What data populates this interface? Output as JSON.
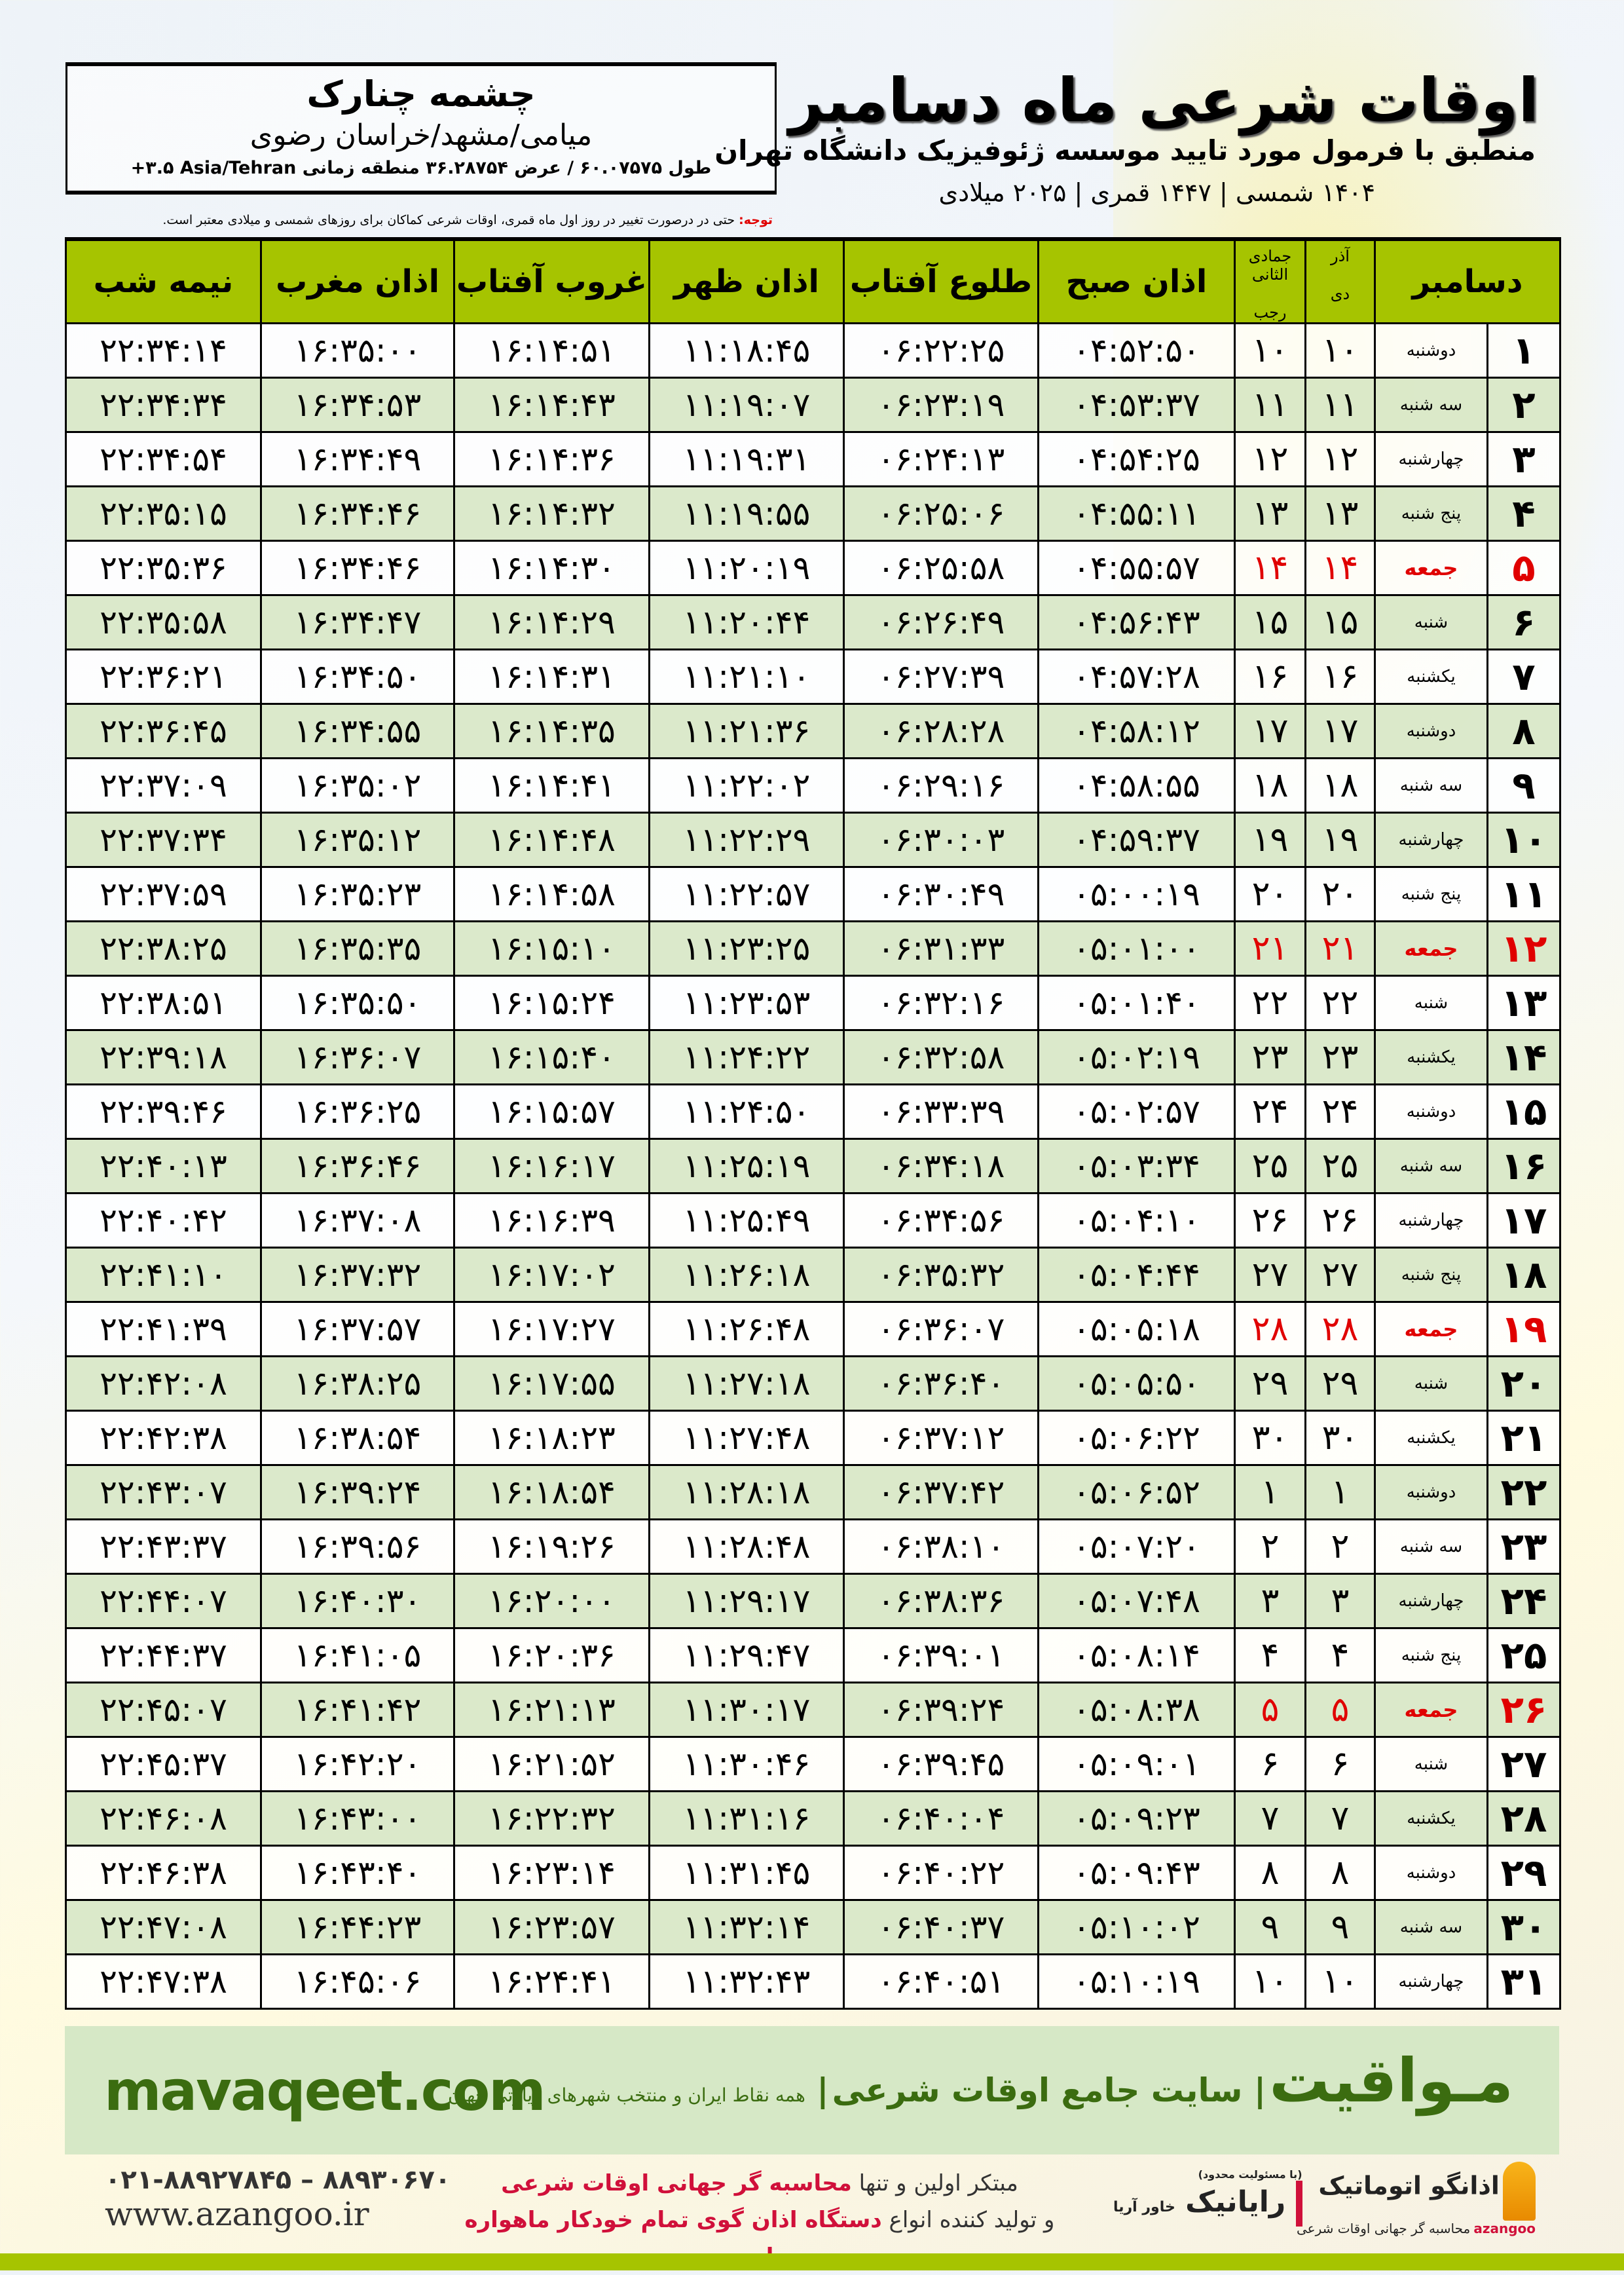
{
  "header": {
    "title": "اوقات شرعی ماه دسامبر",
    "subtitle": "منطبق با فرمول مورد تایید موسسه ژئوفیزیک دانشگاه تهران",
    "years": "۱۴۰۴ شمسی | ۱۴۴۷ قمری | ۲۰۲۵ میلادی"
  },
  "location": {
    "name": "چشمه چنارک",
    "path": "میامی/مشهد/خراسان رضوی",
    "coords": "طول ۶۰.۰۷۵۷۵ / عرض ۳۶.۲۸۷۵۴ منطقه زمانی ‎+۳.۵ Asia/Tehran"
  },
  "note": {
    "label": "توجه:",
    "text": " حتی در درصورت تغییر در روز اول ماه قمری، اوقات شرعی کماکان برای روزهای شمسی و میلادی معتبر است."
  },
  "colors": {
    "header_green": "#a6c400",
    "row_green": "#d9e8c8",
    "friday_red": "#e00000",
    "brand_green": "#3b6c10"
  },
  "table": {
    "columns": {
      "month": "دسامبر",
      "shamsi_top": "آذر",
      "shamsi_bottom": "دی",
      "hijri_top": "جمادی الثانی",
      "hijri_bottom": "رجب",
      "fajr": "اذان صبح",
      "sunrise": "طلوع آفتاب",
      "dhuhr": "اذان ظهر",
      "sunset": "غروب آفتاب",
      "maghrib": "اذان مغرب",
      "midnight": "نیمه شب"
    },
    "rows": [
      [
        "۱",
        "دوشنبه",
        "۱۰",
        "۱۰",
        "۰۴:۵۲:۵۰",
        "۰۶:۲۲:۲۵",
        "۱۱:۱۸:۴۵",
        "۱۶:۱۴:۵۱",
        "۱۶:۳۵:۰۰",
        "۲۲:۳۴:۱۴"
      ],
      [
        "۲",
        "سه شنبه",
        "۱۱",
        "۱۱",
        "۰۴:۵۳:۳۷",
        "۰۶:۲۳:۱۹",
        "۱۱:۱۹:۰۷",
        "۱۶:۱۴:۴۳",
        "۱۶:۳۴:۵۳",
        "۲۲:۳۴:۳۴"
      ],
      [
        "۳",
        "چهارشنبه",
        "۱۲",
        "۱۲",
        "۰۴:۵۴:۲۵",
        "۰۶:۲۴:۱۳",
        "۱۱:۱۹:۳۱",
        "۱۶:۱۴:۳۶",
        "۱۶:۳۴:۴۹",
        "۲۲:۳۴:۵۴"
      ],
      [
        "۴",
        "پنج شنبه",
        "۱۳",
        "۱۳",
        "۰۴:۵۵:۱۱",
        "۰۶:۲۵:۰۶",
        "۱۱:۱۹:۵۵",
        "۱۶:۱۴:۳۲",
        "۱۶:۳۴:۴۶",
        "۲۲:۳۵:۱۵"
      ],
      [
        "۵",
        "جمعه",
        "۱۴",
        "۱۴",
        "۰۴:۵۵:۵۷",
        "۰۶:۲۵:۵۸",
        "۱۱:۲۰:۱۹",
        "۱۶:۱۴:۳۰",
        "۱۶:۳۴:۴۶",
        "۲۲:۳۵:۳۶"
      ],
      [
        "۶",
        "شنبه",
        "۱۵",
        "۱۵",
        "۰۴:۵۶:۴۳",
        "۰۶:۲۶:۴۹",
        "۱۱:۲۰:۴۴",
        "۱۶:۱۴:۲۹",
        "۱۶:۳۴:۴۷",
        "۲۲:۳۵:۵۸"
      ],
      [
        "۷",
        "یکشنبه",
        "۱۶",
        "۱۶",
        "۰۴:۵۷:۲۸",
        "۰۶:۲۷:۳۹",
        "۱۱:۲۱:۱۰",
        "۱۶:۱۴:۳۱",
        "۱۶:۳۴:۵۰",
        "۲۲:۳۶:۲۱"
      ],
      [
        "۸",
        "دوشنبه",
        "۱۷",
        "۱۷",
        "۰۴:۵۸:۱۲",
        "۰۶:۲۸:۲۸",
        "۱۱:۲۱:۳۶",
        "۱۶:۱۴:۳۵",
        "۱۶:۳۴:۵۵",
        "۲۲:۳۶:۴۵"
      ],
      [
        "۹",
        "سه شنبه",
        "۱۸",
        "۱۸",
        "۰۴:۵۸:۵۵",
        "۰۶:۲۹:۱۶",
        "۱۱:۲۲:۰۲",
        "۱۶:۱۴:۴۱",
        "۱۶:۳۵:۰۲",
        "۲۲:۳۷:۰۹"
      ],
      [
        "۱۰",
        "چهارشنبه",
        "۱۹",
        "۱۹",
        "۰۴:۵۹:۳۷",
        "۰۶:۳۰:۰۳",
        "۱۱:۲۲:۲۹",
        "۱۶:۱۴:۴۸",
        "۱۶:۳۵:۱۲",
        "۲۲:۳۷:۳۴"
      ],
      [
        "۱۱",
        "پنج شنبه",
        "۲۰",
        "۲۰",
        "۰۵:۰۰:۱۹",
        "۰۶:۳۰:۴۹",
        "۱۱:۲۲:۵۷",
        "۱۶:۱۴:۵۸",
        "۱۶:۳۵:۲۳",
        "۲۲:۳۷:۵۹"
      ],
      [
        "۱۲",
        "جمعه",
        "۲۱",
        "۲۱",
        "۰۵:۰۱:۰۰",
        "۰۶:۳۱:۳۳",
        "۱۱:۲۳:۲۵",
        "۱۶:۱۵:۱۰",
        "۱۶:۳۵:۳۵",
        "۲۲:۳۸:۲۵"
      ],
      [
        "۱۳",
        "شنبه",
        "۲۲",
        "۲۲",
        "۰۵:۰۱:۴۰",
        "۰۶:۳۲:۱۶",
        "۱۱:۲۳:۵۳",
        "۱۶:۱۵:۲۴",
        "۱۶:۳۵:۵۰",
        "۲۲:۳۸:۵۱"
      ],
      [
        "۱۴",
        "یکشنبه",
        "۲۳",
        "۲۳",
        "۰۵:۰۲:۱۹",
        "۰۶:۳۲:۵۸",
        "۱۱:۲۴:۲۲",
        "۱۶:۱۵:۴۰",
        "۱۶:۳۶:۰۷",
        "۲۲:۳۹:۱۸"
      ],
      [
        "۱۵",
        "دوشنبه",
        "۲۴",
        "۲۴",
        "۰۵:۰۲:۵۷",
        "۰۶:۳۳:۳۹",
        "۱۱:۲۴:۵۰",
        "۱۶:۱۵:۵۷",
        "۱۶:۳۶:۲۵",
        "۲۲:۳۹:۴۶"
      ],
      [
        "۱۶",
        "سه شنبه",
        "۲۵",
        "۲۵",
        "۰۵:۰۳:۳۴",
        "۰۶:۳۴:۱۸",
        "۱۱:۲۵:۱۹",
        "۱۶:۱۶:۱۷",
        "۱۶:۳۶:۴۶",
        "۲۲:۴۰:۱۳"
      ],
      [
        "۱۷",
        "چهارشنبه",
        "۲۶",
        "۲۶",
        "۰۵:۰۴:۱۰",
        "۰۶:۳۴:۵۶",
        "۱۱:۲۵:۴۹",
        "۱۶:۱۶:۳۹",
        "۱۶:۳۷:۰۸",
        "۲۲:۴۰:۴۲"
      ],
      [
        "۱۸",
        "پنج شنبه",
        "۲۷",
        "۲۷",
        "۰۵:۰۴:۴۴",
        "۰۶:۳۵:۳۲",
        "۱۱:۲۶:۱۸",
        "۱۶:۱۷:۰۲",
        "۱۶:۳۷:۳۲",
        "۲۲:۴۱:۱۰"
      ],
      [
        "۱۹",
        "جمعه",
        "۲۸",
        "۲۸",
        "۰۵:۰۵:۱۸",
        "۰۶:۳۶:۰۷",
        "۱۱:۲۶:۴۸",
        "۱۶:۱۷:۲۷",
        "۱۶:۳۷:۵۷",
        "۲۲:۴۱:۳۹"
      ],
      [
        "۲۰",
        "شنبه",
        "۲۹",
        "۲۹",
        "۰۵:۰۵:۵۰",
        "۰۶:۳۶:۴۰",
        "۱۱:۲۷:۱۸",
        "۱۶:۱۷:۵۵",
        "۱۶:۳۸:۲۵",
        "۲۲:۴۲:۰۸"
      ],
      [
        "۲۱",
        "یکشنبه",
        "۳۰",
        "۳۰",
        "۰۵:۰۶:۲۲",
        "۰۶:۳۷:۱۲",
        "۱۱:۲۷:۴۸",
        "۱۶:۱۸:۲۳",
        "۱۶:۳۸:۵۴",
        "۲۲:۴۲:۳۸"
      ],
      [
        "۲۲",
        "دوشنبه",
        "۱",
        "۱",
        "۰۵:۰۶:۵۲",
        "۰۶:۳۷:۴۲",
        "۱۱:۲۸:۱۸",
        "۱۶:۱۸:۵۴",
        "۱۶:۳۹:۲۴",
        "۲۲:۴۳:۰۷"
      ],
      [
        "۲۳",
        "سه شنبه",
        "۲",
        "۲",
        "۰۵:۰۷:۲۰",
        "۰۶:۳۸:۱۰",
        "۱۱:۲۸:۴۸",
        "۱۶:۱۹:۲۶",
        "۱۶:۳۹:۵۶",
        "۲۲:۴۳:۳۷"
      ],
      [
        "۲۴",
        "چهارشنبه",
        "۳",
        "۳",
        "۰۵:۰۷:۴۸",
        "۰۶:۳۸:۳۶",
        "۱۱:۲۹:۱۷",
        "۱۶:۲۰:۰۰",
        "۱۶:۴۰:۳۰",
        "۲۲:۴۴:۰۷"
      ],
      [
        "۲۵",
        "پنج شنبه",
        "۴",
        "۴",
        "۰۵:۰۸:۱۴",
        "۰۶:۳۹:۰۱",
        "۱۱:۲۹:۴۷",
        "۱۶:۲۰:۳۶",
        "۱۶:۴۱:۰۵",
        "۲۲:۴۴:۳۷"
      ],
      [
        "۲۶",
        "جمعه",
        "۵",
        "۵",
        "۰۵:۰۸:۳۸",
        "۰۶:۳۹:۲۴",
        "۱۱:۳۰:۱۷",
        "۱۶:۲۱:۱۳",
        "۱۶:۴۱:۴۲",
        "۲۲:۴۵:۰۷"
      ],
      [
        "۲۷",
        "شنبه",
        "۶",
        "۶",
        "۰۵:۰۹:۰۱",
        "۰۶:۳۹:۴۵",
        "۱۱:۳۰:۴۶",
        "۱۶:۲۱:۵۲",
        "۱۶:۴۲:۲۰",
        "۲۲:۴۵:۳۷"
      ],
      [
        "۲۸",
        "یکشنبه",
        "۷",
        "۷",
        "۰۵:۰۹:۲۳",
        "۰۶:۴۰:۰۴",
        "۱۱:۳۱:۱۶",
        "۱۶:۲۲:۳۲",
        "۱۶:۴۳:۰۰",
        "۲۲:۴۶:۰۸"
      ],
      [
        "۲۹",
        "دوشنبه",
        "۸",
        "۸",
        "۰۵:۰۹:۴۳",
        "۰۶:۴۰:۲۲",
        "۱۱:۳۱:۴۵",
        "۱۶:۲۳:۱۴",
        "۱۶:۴۳:۴۰",
        "۲۲:۴۶:۳۸"
      ],
      [
        "۳۰",
        "سه شنبه",
        "۹",
        "۹",
        "۰۵:۱۰:۰۲",
        "۰۶:۴۰:۳۷",
        "۱۱:۳۲:۱۴",
        "۱۶:۲۳:۵۷",
        "۱۶:۴۴:۲۳",
        "۲۲:۴۷:۰۸"
      ],
      [
        "۳۱",
        "چهارشنبه",
        "۱۰",
        "۱۰",
        "۰۵:۱۰:۱۹",
        "۰۶:۴۰:۵۱",
        "۱۱:۳۲:۴۳",
        "۱۶:۲۴:۴۱",
        "۱۶:۴۵:۰۶",
        "۲۲:۴۷:۳۸"
      ]
    ]
  },
  "footer": {
    "site": "mavaqeet.com",
    "brand": "مـواقیت",
    "brand_tagline": "سایت جامع اوقات شرعی",
    "brand_sub": "همه نقاط ایران و منتخب شهرهای زیارتی جهان",
    "phone": "۰۲۱-۸۸۹۲۷۸۴۵ – ۸۸۹۳۰۶۷۰",
    "web": "www.azangoo.ir",
    "promo1_a": "مبتکر اولین و تنها ",
    "promo1_b": "محاسبه گر جهانی اوقات شرعی",
    "promo2_a": "و تولید کننده انواع ",
    "promo2_b": "دستگاه اذان گوی تمام خودکار ماهواره ای",
    "logo_rayanik": "رایانیک",
    "logo_rayanik_sub": "خاور آریا",
    "logo_rayanik_note": "(با مسئولیت محدود)",
    "logo_azangoo": "اذانگو اتوماتیک",
    "logo_azangoo_sub": "محاسبه گر جهانی اوقات شرعی",
    "logo_azangoo_en": "azangoo"
  }
}
